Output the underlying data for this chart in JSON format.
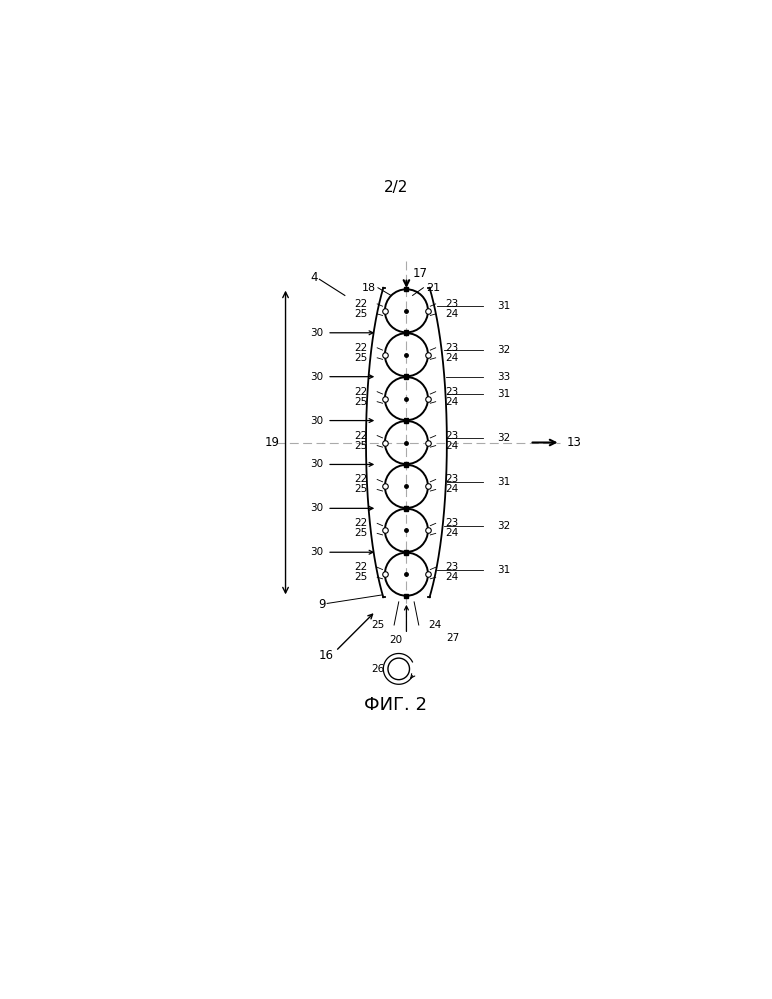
{
  "page_label": "2/2",
  "figure_label": "ФИГ. 2",
  "bg_color": "#ffffff",
  "line_color": "#000000"
}
